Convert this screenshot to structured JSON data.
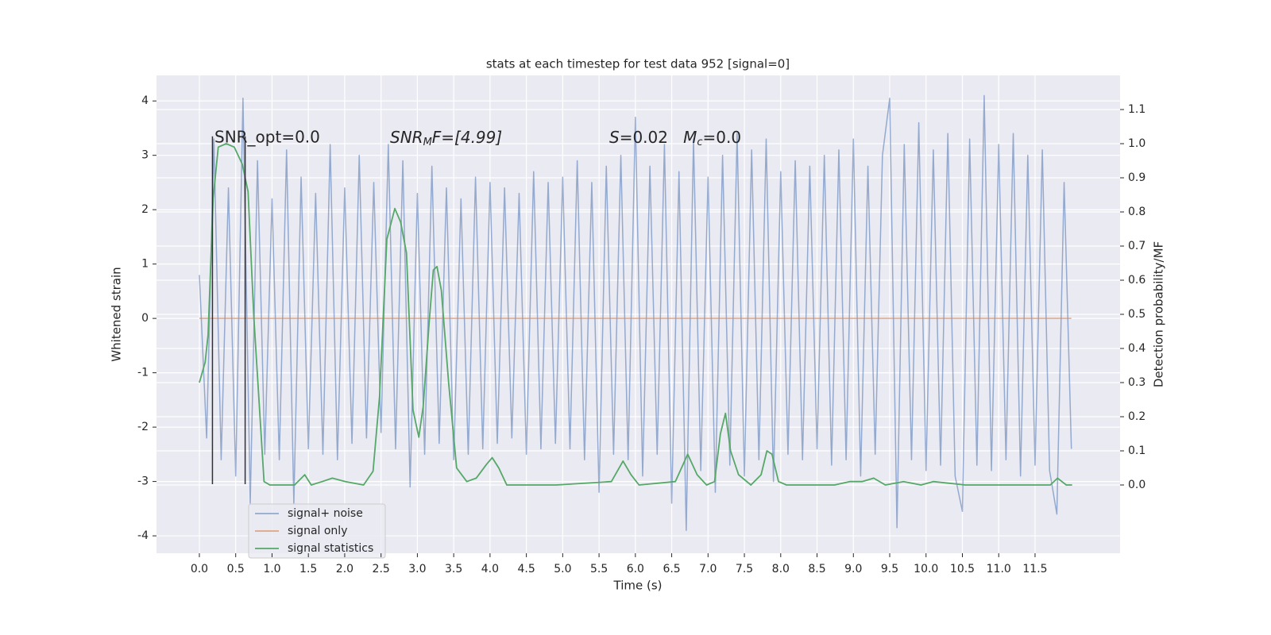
{
  "chart_data": {
    "type": "line",
    "title": "stats at each timestep for test data 952 [signal=0]",
    "xlabel": "Time (s)",
    "ylabel": "Whitened strain",
    "y2label": "Detection probability/MF",
    "annotations": [
      {
        "text": "SNR_opt=0.0"
      },
      {
        "text": "SNR",
        "sub": "M",
        "rest": "F=[4.99]"
      },
      {
        "text": "S",
        "rest": "=0.02   ",
        "text2": "M",
        "sub": "c",
        "rest2": "=0.0"
      }
    ],
    "xlim": [
      -0.59,
      12.67
    ],
    "ylim": [
      -4.32,
      4.47
    ],
    "y2lim": [
      -0.2,
      1.2
    ],
    "xticks": [
      {
        "value": 0,
        "label": "0.0"
      },
      0.5,
      {
        "value": 1,
        "label": "1.0"
      },
      1.5,
      {
        "value": 2,
        "label": "2.0"
      },
      2.5,
      {
        "value": 3,
        "label": "3.0"
      },
      3.5,
      {
        "value": 4,
        "label": "4.0"
      },
      4.5,
      {
        "value": 5,
        "label": "5.0"
      },
      5.5,
      {
        "value": 6,
        "label": "6.0"
      },
      6.5,
      {
        "value": 7,
        "label": "7.0"
      },
      7.5,
      {
        "value": 8,
        "label": "8.0"
      },
      8.5,
      {
        "value": 9,
        "label": "9.0"
      },
      9.5,
      {
        "value": 10,
        "label": "10.0"
      },
      10.5,
      {
        "value": 11,
        "label": "11.0"
      },
      11.5
    ],
    "yticks": [
      -4,
      -3,
      -2,
      -1,
      0,
      1,
      2,
      3,
      4
    ],
    "y2ticks": [
      {
        "value": 0,
        "label": "0.0"
      },
      0.1,
      0.2,
      0.3,
      0.4,
      0.5,
      0.6,
      0.7,
      0.8,
      0.9,
      {
        "value": 1,
        "label": "1.0"
      },
      1.1
    ],
    "grid": true,
    "legend": "lower left",
    "series": [
      {
        "name": "signal+ noise",
        "color": "#4c72b0",
        "x": [
          0,
          0.1,
          0.2,
          0.3,
          0.4,
          0.5,
          0.6,
          0.7,
          0.8,
          0.9,
          1,
          1.1,
          1.2,
          1.3,
          1.4,
          1.5,
          1.6,
          1.7,
          1.8,
          1.9,
          2,
          2.1,
          2.2,
          2.3,
          2.4,
          2.5,
          2.6,
          2.7,
          2.8,
          2.9,
          3,
          3.1,
          3.2,
          3.3,
          3.4,
          3.5,
          3.6,
          3.7,
          3.8,
          3.9,
          4,
          4.1,
          4.2,
          4.3,
          4.4,
          4.5,
          4.6,
          4.7,
          4.8,
          4.9,
          5,
          5.1,
          5.2,
          5.3,
          5.4,
          5.5,
          5.6,
          5.7,
          5.8,
          5.9,
          6,
          6.1,
          6.2,
          6.3,
          6.4,
          6.5,
          6.6,
          6.7,
          6.8,
          6.9,
          7,
          7.1,
          7.2,
          7.3,
          7.4,
          7.5,
          7.6,
          7.7,
          7.8,
          7.9,
          8,
          8.1,
          8.2,
          8.3,
          8.4,
          8.5,
          8.6,
          8.7,
          8.8,
          8.9,
          9,
          9.1,
          9.2,
          9.3,
          9.4,
          9.5,
          9.6,
          9.7,
          9.8,
          9.9,
          10,
          10.1,
          10.2,
          10.3,
          10.4,
          10.5,
          10.6,
          10.7,
          10.8,
          10.9,
          11,
          11.1,
          11.2,
          11.3,
          11.4,
          11.5,
          11.6,
          11.7,
          11.8,
          11.9,
          12
        ],
        "values": [
          0.8,
          -2.2,
          3.3,
          -2.6,
          2.4,
          -2.9,
          4.05,
          -3.4,
          2.9,
          -2.5,
          2.2,
          -2.6,
          3.1,
          -3.4,
          2.6,
          -2.4,
          2.3,
          -2.5,
          3.2,
          -2.6,
          2.4,
          -2.3,
          3.0,
          -2.2,
          2.5,
          -2.1,
          3.2,
          -2.4,
          2.9,
          -3.1,
          2.3,
          -2.5,
          2.8,
          -2.3,
          2.4,
          -2.6,
          2.2,
          -2.5,
          2.6,
          -2.4,
          2.5,
          -2.3,
          2.4,
          -2.2,
          2.3,
          -2.5,
          2.7,
          -2.4,
          2.5,
          -2.3,
          2.6,
          -2.4,
          2.9,
          -2.6,
          2.5,
          -3.2,
          2.8,
          -2.5,
          3.0,
          -2.6,
          3.7,
          -2.9,
          2.8,
          -2.5,
          3.2,
          -3.4,
          2.7,
          -3.9,
          3.3,
          -2.8,
          2.6,
          -3.2,
          3.0,
          -2.7,
          3.4,
          -2.9,
          3.1,
          -2.6,
          3.3,
          -3.0,
          2.7,
          -2.5,
          2.9,
          -2.6,
          2.8,
          -2.4,
          3.0,
          -2.7,
          3.1,
          -2.6,
          3.3,
          -2.9,
          2.8,
          -2.5,
          3.0,
          4.05,
          -3.85,
          3.2,
          -2.6,
          3.6,
          -2.8,
          3.1,
          -2.7,
          3.4,
          -2.9,
          -3.55,
          3.3,
          -2.7,
          4.1,
          -2.8,
          3.2,
          -2.6,
          3.4,
          -2.9,
          3.0,
          -2.7,
          3.1,
          -2.8,
          -3.6,
          2.5,
          -2.4
        ]
      },
      {
        "name": "signal only",
        "color": "#dd8452",
        "x": [
          0,
          12
        ],
        "values": [
          0,
          0
        ]
      },
      {
        "name": "signal statistics",
        "color": "#55a868",
        "axis": "y2",
        "x": [
          0,
          0.08,
          0.12,
          0.19,
          0.26,
          0.37,
          0.48,
          0.59,
          0.67,
          0.75,
          0.89,
          0.97,
          1.31,
          1.45,
          1.54,
          1.69,
          1.83,
          2.01,
          2.26,
          2.39,
          2.48,
          2.58,
          2.69,
          2.77,
          2.85,
          2.94,
          3.02,
          3.08,
          3.16,
          3.22,
          3.27,
          3.33,
          3.43,
          3.54,
          3.68,
          3.81,
          3.95,
          4.03,
          4.12,
          4.23,
          4.91,
          5.67,
          5.83,
          5.94,
          6.05,
          6.55,
          6.72,
          6.85,
          6.98,
          7.09,
          7.17,
          7.24,
          7.31,
          7.42,
          7.59,
          7.73,
          7.81,
          7.88,
          7.97,
          8.08,
          8.74,
          8.95,
          9.12,
          9.28,
          9.44,
          9.69,
          9.93,
          10.1,
          10.54,
          11.41,
          11.71,
          11.81,
          11.93,
          12.01
        ],
        "values": [
          0.3,
          0.36,
          0.44,
          0.84,
          0.99,
          1.0,
          0.99,
          0.94,
          0.86,
          0.49,
          0.01,
          0,
          0,
          0.03,
          0,
          0.01,
          0.02,
          0.01,
          0,
          0.04,
          0.26,
          0.72,
          0.81,
          0.77,
          0.68,
          0.22,
          0.14,
          0.23,
          0.47,
          0.63,
          0.64,
          0.57,
          0.3,
          0.05,
          0.01,
          0.02,
          0.06,
          0.08,
          0.05,
          0,
          0,
          0.01,
          0.07,
          0.03,
          0,
          0.01,
          0.09,
          0.03,
          0,
          0.01,
          0.15,
          0.21,
          0.1,
          0.03,
          0,
          0.03,
          0.1,
          0.09,
          0.01,
          0,
          0,
          0.01,
          0.01,
          0.02,
          0,
          0.01,
          0,
          0.01,
          0,
          0,
          0,
          0.02,
          0,
          0
        ]
      }
    ],
    "vlines": {
      "x": [
        0.18,
        0.63
      ],
      "ymin": -3.05,
      "ymax": 3.35,
      "color": "#2f2f3a"
    }
  }
}
